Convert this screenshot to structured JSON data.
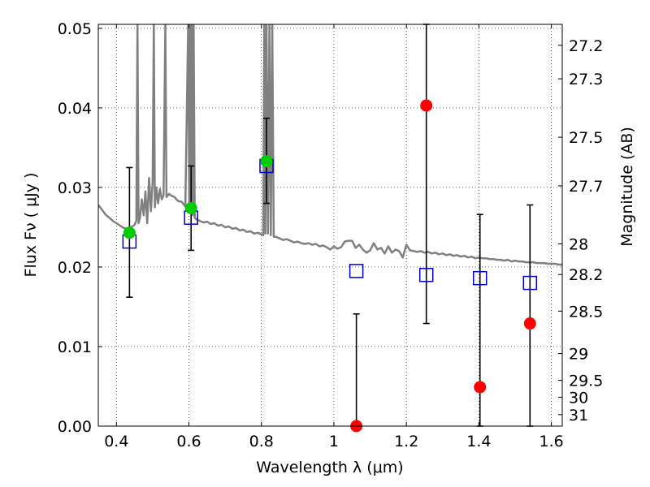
{
  "chart_data": {
    "type": "scatter",
    "title": "",
    "xlabel": "Wavelength  λ (μm)",
    "ylabel": "Flux  Fν  ( μJy )",
    "y2label": "Magnitude (AB)",
    "xlim": [
      0.35,
      1.63
    ],
    "ylim": [
      0.0,
      0.0505
    ],
    "grid": true,
    "x_ticks": [
      {
        "value": 0.4,
        "label": "0.4"
      },
      {
        "value": 0.6,
        "label": "0.6"
      },
      {
        "value": 0.8,
        "label": "0.8"
      },
      {
        "value": 1.0,
        "label": "1"
      },
      {
        "value": 1.2,
        "label": "1.2"
      },
      {
        "value": 1.4,
        "label": "1.4"
      },
      {
        "value": 1.6,
        "label": "1.6"
      }
    ],
    "y_ticks": [
      {
        "value": 0.0,
        "label": "0.00"
      },
      {
        "value": 0.01,
        "label": "0.01"
      },
      {
        "value": 0.02,
        "label": "0.02"
      },
      {
        "value": 0.03,
        "label": "0.03"
      },
      {
        "value": 0.04,
        "label": "0.04"
      },
      {
        "value": 0.05,
        "label": "0.05"
      }
    ],
    "y2_ticks": [
      {
        "value": 27.2,
        "label": "27.2"
      },
      {
        "value": 27.3,
        "label": "27.3"
      },
      {
        "value": 27.5,
        "label": "27.5"
      },
      {
        "value": 27.7,
        "label": "27.7"
      },
      {
        "value": 28.0,
        "label": "28"
      },
      {
        "value": 28.2,
        "label": "28.2"
      },
      {
        "value": 28.5,
        "label": "28.5"
      },
      {
        "value": 29.0,
        "label": "29"
      },
      {
        "value": 29.5,
        "label": "29.5"
      },
      {
        "value": 30.0,
        "label": "30"
      },
      {
        "value": 31.0,
        "label": "31"
      }
    ],
    "series": [
      {
        "kind": "line",
        "color": "#808080",
        "points": [
          [
            0.35,
            0.0278
          ],
          [
            0.36,
            0.0272
          ],
          [
            0.37,
            0.0266
          ],
          [
            0.38,
            0.0262
          ],
          [
            0.39,
            0.0258
          ],
          [
            0.4,
            0.0255
          ],
          [
            0.41,
            0.0252
          ],
          [
            0.42,
            0.0249
          ],
          [
            0.43,
            0.0248
          ],
          [
            0.44,
            0.025
          ],
          [
            0.45,
            0.0253
          ],
          [
            0.455,
            0.0258
          ],
          [
            0.458,
            0.0505
          ],
          [
            0.461,
            0.0255
          ],
          [
            0.465,
            0.0262
          ],
          [
            0.47,
            0.0285
          ],
          [
            0.475,
            0.0265
          ],
          [
            0.48,
            0.0295
          ],
          [
            0.485,
            0.0255
          ],
          [
            0.49,
            0.0312
          ],
          [
            0.495,
            0.027
          ],
          [
            0.5,
            0.0308
          ],
          [
            0.503,
            0.0505
          ],
          [
            0.506,
            0.0275
          ],
          [
            0.51,
            0.03
          ],
          [
            0.515,
            0.028
          ],
          [
            0.52,
            0.0298
          ],
          [
            0.525,
            0.0285
          ],
          [
            0.53,
            0.029
          ],
          [
            0.535,
            0.0505
          ],
          [
            0.538,
            0.0288
          ],
          [
            0.545,
            0.0292
          ],
          [
            0.55,
            0.029
          ],
          [
            0.56,
            0.0288
          ],
          [
            0.57,
            0.0283
          ],
          [
            0.58,
            0.0282
          ],
          [
            0.59,
            0.0276
          ],
          [
            0.598,
            0.0505
          ],
          [
            0.601,
            0.0272
          ],
          [
            0.603,
            0.0505
          ],
          [
            0.606,
            0.0268
          ],
          [
            0.608,
            0.0505
          ],
          [
            0.611,
            0.0265
          ],
          [
            0.613,
            0.0505
          ],
          [
            0.616,
            0.0262
          ],
          [
            0.62,
            0.026
          ],
          [
            0.63,
            0.0258
          ],
          [
            0.64,
            0.0256
          ],
          [
            0.65,
            0.0257
          ],
          [
            0.66,
            0.0254
          ],
          [
            0.67,
            0.0255
          ],
          [
            0.68,
            0.0252
          ],
          [
            0.69,
            0.0253
          ],
          [
            0.7,
            0.025
          ],
          [
            0.71,
            0.0251
          ],
          [
            0.72,
            0.0248
          ],
          [
            0.73,
            0.0249
          ],
          [
            0.74,
            0.0246
          ],
          [
            0.75,
            0.0247
          ],
          [
            0.76,
            0.0244
          ],
          [
            0.77,
            0.0245
          ],
          [
            0.78,
            0.0242
          ],
          [
            0.79,
            0.0243
          ],
          [
            0.8,
            0.0241
          ],
          [
            0.805,
            0.024
          ],
          [
            0.808,
            0.0505
          ],
          [
            0.811,
            0.0242
          ],
          [
            0.814,
            0.0505
          ],
          [
            0.818,
            0.0242
          ],
          [
            0.822,
            0.0505
          ],
          [
            0.826,
            0.024
          ],
          [
            0.83,
            0.0505
          ],
          [
            0.834,
            0.0238
          ],
          [
            0.84,
            0.0238
          ],
          [
            0.85,
            0.0236
          ],
          [
            0.86,
            0.0234
          ],
          [
            0.87,
            0.0235
          ],
          [
            0.88,
            0.0233
          ],
          [
            0.89,
            0.0231
          ],
          [
            0.9,
            0.0232
          ],
          [
            0.91,
            0.023
          ],
          [
            0.92,
            0.0229
          ],
          [
            0.93,
            0.023
          ],
          [
            0.94,
            0.0228
          ],
          [
            0.95,
            0.0229
          ],
          [
            0.96,
            0.0226
          ],
          [
            0.97,
            0.0227
          ],
          [
            0.98,
            0.0225
          ],
          [
            0.99,
            0.0222
          ],
          [
            1.0,
            0.0226
          ],
          [
            1.01,
            0.0223
          ],
          [
            1.02,
            0.0225
          ],
          [
            1.03,
            0.0232
          ],
          [
            1.04,
            0.0233
          ],
          [
            1.05,
            0.0233
          ],
          [
            1.06,
            0.0224
          ],
          [
            1.07,
            0.0228
          ],
          [
            1.08,
            0.0222
          ],
          [
            1.09,
            0.0218
          ],
          [
            1.1,
            0.0221
          ],
          [
            1.11,
            0.023
          ],
          [
            1.12,
            0.0222
          ],
          [
            1.13,
            0.0224
          ],
          [
            1.14,
            0.0217
          ],
          [
            1.15,
            0.0226
          ],
          [
            1.16,
            0.0218
          ],
          [
            1.17,
            0.0222
          ],
          [
            1.18,
            0.022
          ],
          [
            1.19,
            0.0212
          ],
          [
            1.2,
            0.0228
          ],
          [
            1.21,
            0.0221
          ],
          [
            1.22,
            0.022
          ],
          [
            1.23,
            0.0219
          ],
          [
            1.24,
            0.022
          ],
          [
            1.25,
            0.0218
          ],
          [
            1.26,
            0.0219
          ],
          [
            1.27,
            0.0217
          ],
          [
            1.28,
            0.0218
          ],
          [
            1.29,
            0.0216
          ],
          [
            1.3,
            0.0217
          ],
          [
            1.31,
            0.0215
          ],
          [
            1.32,
            0.0216
          ],
          [
            1.33,
            0.0214
          ],
          [
            1.34,
            0.0215
          ],
          [
            1.35,
            0.0213
          ],
          [
            1.36,
            0.0214
          ],
          [
            1.37,
            0.0212
          ],
          [
            1.38,
            0.0213
          ],
          [
            1.39,
            0.0211
          ],
          [
            1.4,
            0.0212
          ],
          [
            1.41,
            0.0211
          ],
          [
            1.42,
            0.0211
          ],
          [
            1.43,
            0.021
          ],
          [
            1.44,
            0.021
          ],
          [
            1.45,
            0.0209
          ],
          [
            1.46,
            0.0209
          ],
          [
            1.47,
            0.0208
          ],
          [
            1.48,
            0.0209
          ],
          [
            1.49,
            0.0207
          ],
          [
            1.5,
            0.0208
          ],
          [
            1.51,
            0.0207
          ],
          [
            1.52,
            0.0207
          ],
          [
            1.53,
            0.0206
          ],
          [
            1.54,
            0.0206
          ],
          [
            1.55,
            0.0206
          ],
          [
            1.56,
            0.0205
          ],
          [
            1.57,
            0.0205
          ],
          [
            1.58,
            0.0205
          ],
          [
            1.59,
            0.0204
          ],
          [
            1.6,
            0.0204
          ],
          [
            1.61,
            0.0204
          ],
          [
            1.62,
            0.0203
          ],
          [
            1.63,
            0.0203
          ]
        ]
      },
      {
        "kind": "errorbar",
        "color": "#000000",
        "points": [
          {
            "x": 0.436,
            "y": 0.0243,
            "ylo": 0.0162,
            "yhi": 0.0325
          },
          {
            "x": 0.606,
            "y": 0.0274,
            "ylo": 0.0221,
            "yhi": 0.0327
          },
          {
            "x": 0.814,
            "y": 0.0333,
            "ylo": 0.028,
            "yhi": 0.0387
          },
          {
            "x": 1.062,
            "y": 0.0,
            "ylo": 0.0,
            "yhi": 0.0141
          },
          {
            "x": 1.255,
            "y": 0.0403,
            "ylo": 0.0129,
            "yhi": 0.0505
          },
          {
            "x": 1.403,
            "y": 0.0049,
            "ylo": 0.0,
            "yhi": 0.0266
          },
          {
            "x": 1.541,
            "y": 0.0129,
            "ylo": 0.0,
            "yhi": 0.0278
          }
        ]
      },
      {
        "kind": "marker-square-open",
        "color": "#0000cc",
        "points": [
          [
            0.436,
            0.0232
          ],
          [
            0.606,
            0.0262
          ],
          [
            0.814,
            0.0327
          ],
          [
            1.062,
            0.0195
          ],
          [
            1.255,
            0.019
          ],
          [
            1.403,
            0.0186
          ],
          [
            1.541,
            0.018
          ]
        ]
      },
      {
        "kind": "marker-circle-filled",
        "color": "#00cc00",
        "points": [
          [
            0.436,
            0.0243
          ],
          [
            0.606,
            0.0274
          ],
          [
            0.814,
            0.0333
          ]
        ]
      },
      {
        "kind": "marker-circle-filled",
        "color": "#ff0000",
        "points": [
          [
            1.062,
            0.0
          ],
          [
            1.255,
            0.0403
          ],
          [
            1.403,
            0.0049
          ],
          [
            1.541,
            0.0129
          ]
        ]
      }
    ]
  }
}
